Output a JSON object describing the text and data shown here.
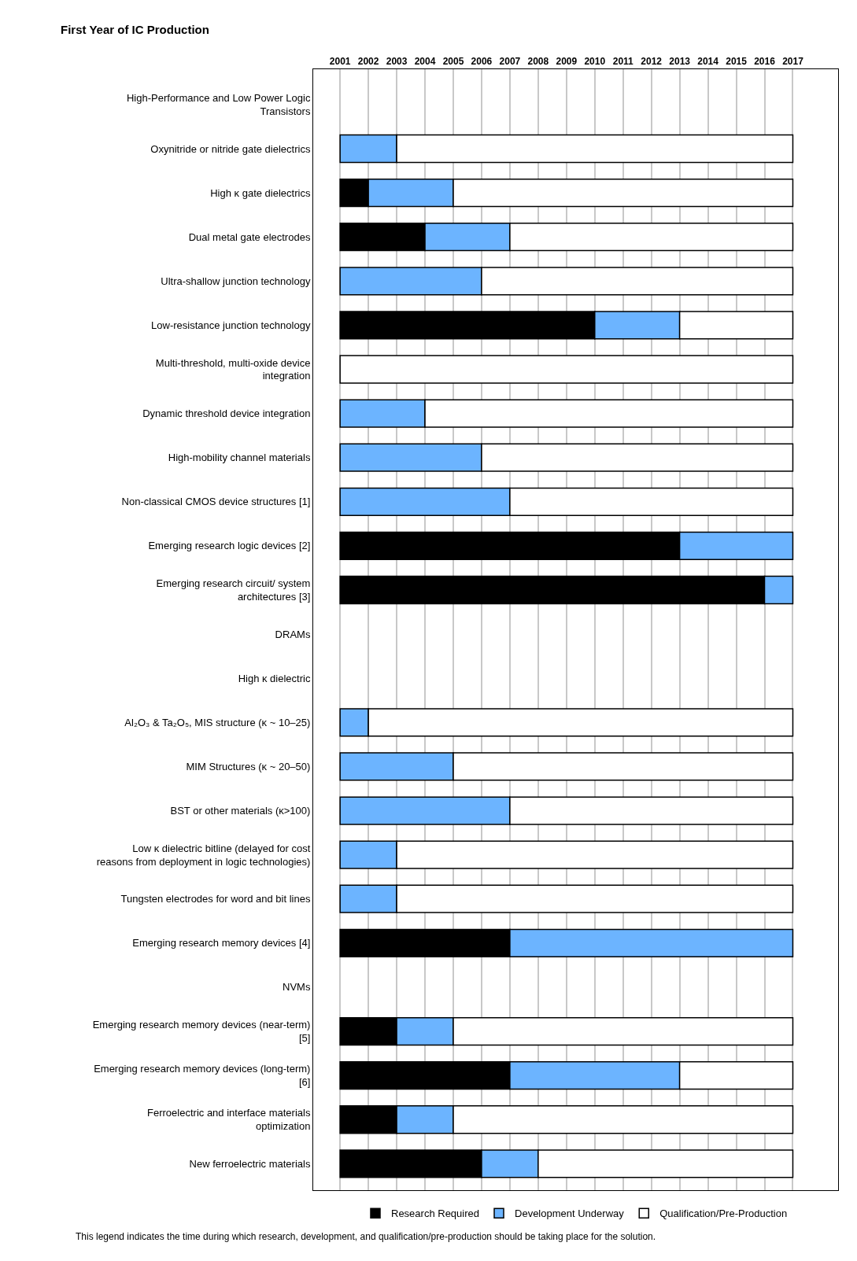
{
  "chart_data": {
    "type": "bar",
    "orientation": "horizontal",
    "xlabel": "First Year of IC Production",
    "categories": [
      "High-Performance and Low Power Logic Transistors",
      "Oxynitride or nitride gate dielectrics",
      "High κ gate dielectrics",
      "Dual metal gate electrodes",
      "Ultra-shallow junction technology",
      "Low-resistance junction technology",
      "Multi-threshold, multi-oxide device integration",
      "Dynamic threshold device integration",
      "High-mobility channel materials",
      "Non-classical CMOS device structures [1]",
      "Emerging research logic devices [2]",
      "Emerging research circuit/ system architectures [3]",
      "DRAMs",
      "High κ dielectric",
      "Al₂O₃ & Ta₂O₅, MIS structure (κ ~ 10–25)",
      "MIM Structures (κ ~ 20–50)",
      "BST or other materials (κ>100)",
      "Low κ dielectric bitline (delayed for cost reasons from deployment in logic technologies)",
      "Tungsten electrodes for word and bit lines",
      "Emerging research memory devices [4]",
      "NVMs",
      "Emerging research memory devices (near-term) [5]",
      "Emerging research memory devices (long-term) [6]",
      "Ferroelectric and interface materials optimization",
      "New ferroelectric materials"
    ],
    "series": [
      {
        "name": "Research Required",
        "color": "#000000",
        "base": [
          null,
          null,
          2001,
          2001,
          null,
          2001,
          null,
          null,
          null,
          null,
          2001,
          2001,
          null,
          null,
          null,
          null,
          null,
          null,
          null,
          2001,
          null,
          2001,
          2001,
          2001,
          2001
        ],
        "values": [
          null,
          null,
          1,
          3,
          null,
          9,
          null,
          null,
          null,
          null,
          12,
          15,
          null,
          null,
          null,
          null,
          null,
          null,
          null,
          6,
          null,
          2,
          6,
          2,
          5
        ]
      },
      {
        "name": "Development Underway",
        "color": "#6cb4ff",
        "base": [
          null,
          2001,
          2002,
          2004,
          2001,
          2010,
          null,
          2001,
          2001,
          2001,
          2013,
          2016,
          null,
          null,
          2001,
          2001,
          2001,
          2001,
          2001,
          2007,
          null,
          2003,
          2007,
          2003,
          2006
        ],
        "values": [
          null,
          2,
          3,
          3,
          5,
          3,
          null,
          3,
          5,
          6,
          4,
          1,
          null,
          null,
          1,
          4,
          6,
          2,
          2,
          10,
          null,
          2,
          6,
          2,
          2
        ]
      },
      {
        "name": "Qualification/Pre-Production",
        "color": "#ffffff",
        "base": [
          null,
          2003,
          2005,
          2007,
          2006,
          2013,
          2001,
          2004,
          2006,
          2007,
          null,
          null,
          null,
          null,
          2002,
          2005,
          2007,
          2003,
          2003,
          null,
          null,
          2005,
          2013,
          2005,
          2008
        ],
        "values": [
          null,
          14,
          12,
          10,
          11,
          4,
          16,
          13,
          11,
          10,
          null,
          null,
          null,
          null,
          15,
          12,
          10,
          14,
          14,
          null,
          null,
          12,
          4,
          12,
          9
        ]
      }
    ],
    "xlim": [
      2000.05,
      2018.6
    ],
    "xticks": [
      2001,
      2002,
      2003,
      2004,
      2005,
      2006,
      2007,
      2008,
      2009,
      2010,
      2011,
      2012,
      2013,
      2014,
      2015,
      2016,
      2017
    ],
    "grid": "x",
    "legend": "bottom",
    "annotations": [
      "This legend indicates the time during which research, development, and qualification/pre-production should be taking place for the solution."
    ]
  }
}
